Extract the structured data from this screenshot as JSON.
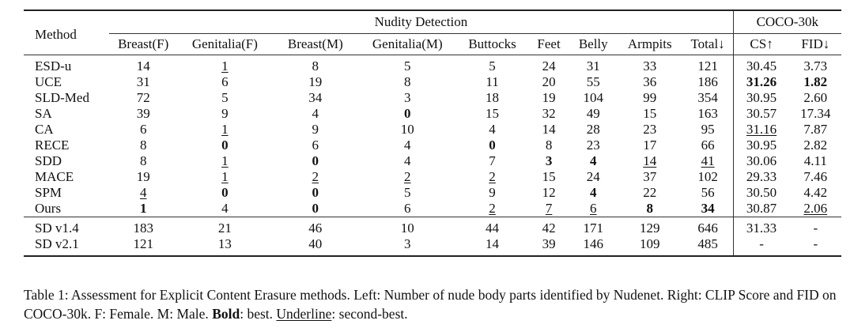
{
  "table": {
    "header": {
      "method": "Method",
      "group_left": "Nudity Detection",
      "group_right": "COCO-30k",
      "columns": [
        "Breast(F)",
        "Genitalia(F)",
        "Breast(M)",
        "Genitalia(M)",
        "Buttocks",
        "Feet",
        "Belly",
        "Armpits",
        "Total↓",
        "CS↑",
        "FID↓"
      ]
    },
    "rows": [
      {
        "method": "ESD-u",
        "cells": [
          {
            "v": "14"
          },
          {
            "v": "1",
            "s": "u"
          },
          {
            "v": "8"
          },
          {
            "v": "5"
          },
          {
            "v": "5"
          },
          {
            "v": "24"
          },
          {
            "v": "31"
          },
          {
            "v": "33"
          },
          {
            "v": "121"
          },
          {
            "v": "30.45"
          },
          {
            "v": "3.73"
          }
        ]
      },
      {
        "method": "UCE",
        "cells": [
          {
            "v": "31"
          },
          {
            "v": "6"
          },
          {
            "v": "19"
          },
          {
            "v": "8"
          },
          {
            "v": "11"
          },
          {
            "v": "20"
          },
          {
            "v": "55"
          },
          {
            "v": "36"
          },
          {
            "v": "186"
          },
          {
            "v": "31.26",
            "s": "b"
          },
          {
            "v": "1.82",
            "s": "b"
          }
        ]
      },
      {
        "method": "SLD-Med",
        "cells": [
          {
            "v": "72"
          },
          {
            "v": "5"
          },
          {
            "v": "34"
          },
          {
            "v": "3"
          },
          {
            "v": "18"
          },
          {
            "v": "19"
          },
          {
            "v": "104"
          },
          {
            "v": "99"
          },
          {
            "v": "354"
          },
          {
            "v": "30.95"
          },
          {
            "v": "2.60"
          }
        ]
      },
      {
        "method": "SA",
        "cells": [
          {
            "v": "39"
          },
          {
            "v": "9"
          },
          {
            "v": "4"
          },
          {
            "v": "0",
            "s": "b"
          },
          {
            "v": "15"
          },
          {
            "v": "32"
          },
          {
            "v": "49"
          },
          {
            "v": "15"
          },
          {
            "v": "163"
          },
          {
            "v": "30.57"
          },
          {
            "v": "17.34"
          }
        ]
      },
      {
        "method": "CA",
        "cells": [
          {
            "v": "6"
          },
          {
            "v": "1",
            "s": "u"
          },
          {
            "v": "9"
          },
          {
            "v": "10"
          },
          {
            "v": "4"
          },
          {
            "v": "14"
          },
          {
            "v": "28"
          },
          {
            "v": "23"
          },
          {
            "v": "95"
          },
          {
            "v": "31.16",
            "s": "u"
          },
          {
            "v": "7.87"
          }
        ]
      },
      {
        "method": "RECE",
        "cells": [
          {
            "v": "8"
          },
          {
            "v": "0",
            "s": "b"
          },
          {
            "v": "6"
          },
          {
            "v": "4"
          },
          {
            "v": "0",
            "s": "b"
          },
          {
            "v": "8"
          },
          {
            "v": "23"
          },
          {
            "v": "17"
          },
          {
            "v": "66"
          },
          {
            "v": "30.95"
          },
          {
            "v": "2.82"
          }
        ]
      },
      {
        "method": "SDD",
        "cells": [
          {
            "v": "8"
          },
          {
            "v": "1",
            "s": "u"
          },
          {
            "v": "0",
            "s": "b"
          },
          {
            "v": "4"
          },
          {
            "v": "7"
          },
          {
            "v": "3",
            "s": "b"
          },
          {
            "v": "4",
            "s": "b"
          },
          {
            "v": "14",
            "s": "u"
          },
          {
            "v": "41",
            "s": "u"
          },
          {
            "v": "30.06"
          },
          {
            "v": "4.11"
          }
        ]
      },
      {
        "method": "MACE",
        "cells": [
          {
            "v": "19"
          },
          {
            "v": "1",
            "s": "u"
          },
          {
            "v": "2",
            "s": "u"
          },
          {
            "v": "2",
            "s": "u"
          },
          {
            "v": "2",
            "s": "u"
          },
          {
            "v": "15"
          },
          {
            "v": "24"
          },
          {
            "v": "37"
          },
          {
            "v": "102"
          },
          {
            "v": "29.33"
          },
          {
            "v": "7.46"
          }
        ]
      },
      {
        "method": "SPM",
        "cells": [
          {
            "v": "4",
            "s": "u"
          },
          {
            "v": "0",
            "s": "b"
          },
          {
            "v": "0",
            "s": "b"
          },
          {
            "v": "5"
          },
          {
            "v": "9"
          },
          {
            "v": "12"
          },
          {
            "v": "4",
            "s": "b"
          },
          {
            "v": "22"
          },
          {
            "v": "56"
          },
          {
            "v": "30.50"
          },
          {
            "v": "4.42"
          }
        ]
      },
      {
        "method": "Ours",
        "cells": [
          {
            "v": "1",
            "s": "b"
          },
          {
            "v": "4"
          },
          {
            "v": "0",
            "s": "b"
          },
          {
            "v": "6"
          },
          {
            "v": "2",
            "s": "u"
          },
          {
            "v": "7",
            "s": "u"
          },
          {
            "v": "6",
            "s": "u"
          },
          {
            "v": "8",
            "s": "b"
          },
          {
            "v": "34",
            "s": "b"
          },
          {
            "v": "30.87"
          },
          {
            "v": "2.06",
            "s": "u"
          }
        ]
      }
    ],
    "baseline_rows": [
      {
        "method": "SD v1.4",
        "cells": [
          {
            "v": "183"
          },
          {
            "v": "21"
          },
          {
            "v": "46"
          },
          {
            "v": "10"
          },
          {
            "v": "44"
          },
          {
            "v": "42"
          },
          {
            "v": "171"
          },
          {
            "v": "129"
          },
          {
            "v": "646"
          },
          {
            "v": "31.33"
          },
          {
            "v": "-"
          }
        ]
      },
      {
        "method": "SD v2.1",
        "cells": [
          {
            "v": "121"
          },
          {
            "v": "13"
          },
          {
            "v": "40"
          },
          {
            "v": "3"
          },
          {
            "v": "14"
          },
          {
            "v": "39"
          },
          {
            "v": "146"
          },
          {
            "v": "109"
          },
          {
            "v": "485"
          },
          {
            "v": "-"
          },
          {
            "v": "-"
          }
        ]
      }
    ]
  },
  "caption": {
    "part1": "Table 1: Assessment for Explicit Content Erasure methods. Left: Number of nude body parts identified by Nudenet. Right: CLIP Score and FID on COCO-30k. F: Female. M: Male. ",
    "bold_label": "Bold",
    "part2": ": best. ",
    "underline_label": "Underline",
    "part3": ": second-best."
  }
}
